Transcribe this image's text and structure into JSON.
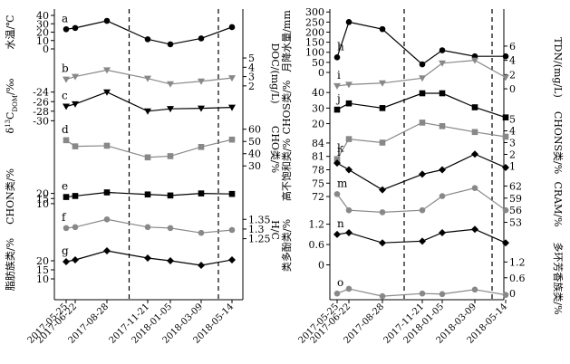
{
  "chart_data": {
    "type": "line",
    "x_dates": [
      "2017-05-25",
      "2017-06-22",
      "2017-08-28",
      "2017-11-21",
      "2018-01-05",
      "2018-03-09",
      "2018-05-14"
    ],
    "dashed_after_dates": [
      "2017-08-28",
      "2018-03-09"
    ],
    "colors": {
      "black": "#000000",
      "gray": "#888888"
    },
    "panels": [
      {
        "label": "a",
        "side": "left",
        "axis_side": "left",
        "ylabel": "水温/℃",
        "ticks": [
          0,
          10,
          20,
          30,
          40
        ],
        "ylim": [
          0,
          40
        ],
        "color": "#000000",
        "marker": "circle",
        "values": [
          23.5,
          25,
          33.5,
          11.5,
          5.5,
          12.5,
          26
        ]
      },
      {
        "label": "b",
        "side": "left",
        "axis_side": "right",
        "ylabel": "DOC/(mg/L)",
        "ticks": [
          2,
          3,
          4,
          5
        ],
        "ylim": [
          1.5,
          5.2
        ],
        "color": "#888888",
        "marker": "triangle-down",
        "values": [
          2.7,
          3.0,
          3.7,
          2.8,
          2.2,
          2.5,
          2.85
        ]
      },
      {
        "label": "c",
        "side": "left",
        "axis_side": "left",
        "ylabel": "δ¹³C_DOM/‰",
        "ticks": [
          -30,
          -28,
          -26,
          -24
        ],
        "ylim": [
          -30.5,
          -23.3
        ],
        "color": "#000000",
        "marker": "triangle-down",
        "values": [
          -27,
          -26.5,
          -24,
          -28,
          -27.5,
          -27.4,
          -27.2
        ]
      },
      {
        "label": "d",
        "side": "left",
        "axis_side": "right",
        "ylabel": "CHO类/%",
        "ticks": [
          30,
          40,
          50,
          60
        ],
        "ylim": [
          25,
          62
        ],
        "color": "#888888",
        "marker": "square",
        "values": [
          51,
          46,
          46.5,
          37,
          38,
          45.5,
          51.5
        ]
      },
      {
        "label": "e",
        "side": "left",
        "axis_side": "left",
        "ylabel": "CHON类/%",
        "ticks": [
          10,
          15,
          20
        ],
        "ylim": [
          9,
          25
        ],
        "color": "#000000",
        "marker": "square",
        "values": [
          16.5,
          17.5,
          21,
          19,
          18,
          20,
          19.5
        ]
      },
      {
        "label": "f",
        "side": "left",
        "axis_side": "right",
        "ylabel": "H/C",
        "ticks": [
          1.25,
          1.3,
          1.35
        ],
        "ylim": [
          1.22,
          1.37
        ],
        "color": "#888888",
        "marker": "circle",
        "values": [
          1.305,
          1.31,
          1.35,
          1.31,
          1.305,
          1.28,
          1.295
        ]
      },
      {
        "label": "g",
        "side": "left",
        "axis_side": "left",
        "ylabel": "脂肪族类/%",
        "ticks": [
          10,
          15,
          20
        ],
        "ylim": [
          8,
          28
        ],
        "color": "#000000",
        "marker": "diamond",
        "values": [
          19.5,
          20.5,
          25.5,
          21.5,
          20,
          17.5,
          20.5
        ]
      },
      {
        "label": "h",
        "side": "right",
        "axis_side": "left",
        "ylabel": "月降水量/mm",
        "ticks": [
          0,
          50,
          100,
          150,
          200,
          250,
          300
        ],
        "ylim": [
          0,
          310
        ],
        "color": "#000000",
        "marker": "circle",
        "values": [
          75,
          250,
          215,
          40,
          110,
          80,
          80
        ]
      },
      {
        "label": "i",
        "side": "right",
        "axis_side": "right",
        "ylabel": "TDN/(mg/L)",
        "ticks": [
          0,
          2,
          4,
          6
        ],
        "ylim": [
          -0.5,
          6.5
        ],
        "color": "#888888",
        "marker": "triangle-down",
        "values": [
          0.4,
          0.6,
          0.8,
          1.5,
          3.6,
          4.0,
          1.6
        ]
      },
      {
        "label": "j",
        "side": "right",
        "axis_side": "left",
        "ylabel": "CHOS类/%",
        "ticks": [
          20,
          30,
          40
        ],
        "ylim": [
          18,
          43
        ],
        "color": "#000000",
        "marker": "square",
        "values": [
          29,
          33,
          30,
          39.5,
          39.5,
          30.5,
          24
        ]
      },
      {
        "label": "k",
        "side": "right",
        "axis_side": "right",
        "ylabel": "CHONS类/%",
        "ticks": [
          1,
          2,
          3,
          4,
          5
        ],
        "ylim": [
          0.5,
          5.5
        ],
        "color": "#888888",
        "marker": "square",
        "values": [
          1.6,
          3.3,
          3.0,
          4.7,
          4.4,
          3.9,
          3.5
        ]
      },
      {
        "label": "l",
        "side": "right",
        "axis_side": "left",
        "ylabel": "高不饱和类/%",
        "ticks": [
          72,
          75,
          78,
          81,
          84
        ],
        "ylim": [
          71,
          85
        ],
        "color": "#000000",
        "marker": "diamond",
        "values": [
          79.5,
          78,
          73.5,
          77,
          78,
          81.5,
          78.5
        ]
      },
      {
        "label": "m",
        "side": "right",
        "axis_side": "right",
        "ylabel": "CRAM/%",
        "ticks": [
          53,
          56,
          59,
          62
        ],
        "ylim": [
          52,
          63
        ],
        "color": "#888888",
        "marker": "circle",
        "values": [
          60,
          56,
          55.5,
          56,
          59.5,
          61.5,
          56
        ]
      },
      {
        "label": "n",
        "side": "right",
        "axis_side": "left",
        "ylabel": "类多酚类/%",
        "ticks": [
          0,
          0.6,
          1.2
        ],
        "ylim": [
          -0.2,
          1.35
        ],
        "color": "#000000",
        "marker": "diamond",
        "values": [
          0.9,
          0.95,
          0.65,
          0.7,
          0.95,
          1.05,
          0.65
        ]
      },
      {
        "label": "o",
        "side": "right",
        "axis_side": "right",
        "ylabel": "多环芳香族类/%",
        "ticks": [
          0,
          0.6,
          1.2
        ],
        "ylim": [
          -0.2,
          1.35
        ],
        "color": "#888888",
        "marker": "circle",
        "values": [
          0.0,
          0.18,
          -0.1,
          0.0,
          -0.02,
          0.15,
          -0.05
        ]
      }
    ]
  }
}
